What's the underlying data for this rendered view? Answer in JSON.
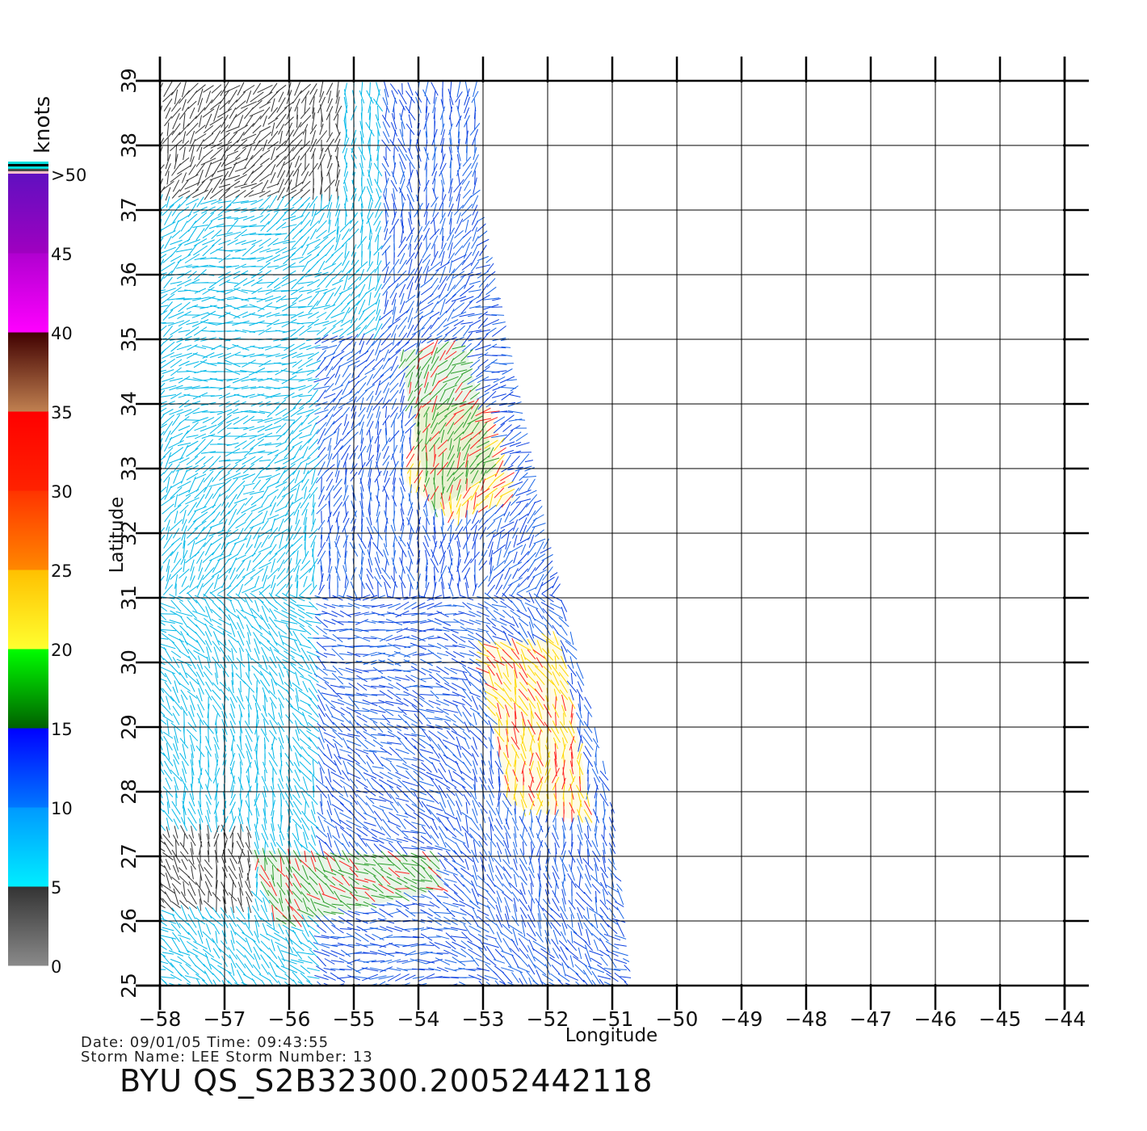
{
  "map": {
    "lon_ticks": [
      -58,
      -57,
      -56,
      -55,
      -54,
      -53,
      -52,
      -51,
      -50,
      -49,
      -48,
      -47,
      -46,
      -45,
      -44
    ],
    "lat_ticks": [
      25,
      26,
      27,
      28,
      29,
      30,
      31,
      32,
      33,
      34,
      35,
      36,
      37,
      38,
      39
    ],
    "lon_tick_labels": [
      "−58",
      "−57",
      "−56",
      "−55",
      "−54",
      "−53",
      "−52",
      "−51",
      "−50",
      "−49",
      "−48",
      "−47",
      "−46",
      "−45",
      "−44"
    ],
    "lat_tick_labels": [
      "25",
      "26",
      "27",
      "28",
      "29",
      "30",
      "31",
      "32",
      "33",
      "34",
      "35",
      "36",
      "37",
      "38",
      "39"
    ],
    "xlabel": "Longitude",
    "ylabel": "Latitude",
    "swath_polygon": [
      [
        -58,
        39
      ],
      [
        -53,
        39
      ],
      [
        -53,
        37
      ],
      [
        -52,
        32
      ],
      [
        -51,
        28
      ],
      [
        -50.7,
        25
      ],
      [
        -58,
        25
      ]
    ],
    "high_wind_zones": [
      {
        "color": "#ffd800",
        "points": [
          [
            -54,
            34
          ],
          [
            -52.9,
            34
          ],
          [
            -52.5,
            32.5
          ],
          [
            -53.5,
            32.2
          ],
          [
            -54.2,
            32.8
          ]
        ]
      },
      {
        "color": "#2ca02c",
        "points": [
          [
            -54.3,
            34.8
          ],
          [
            -53.3,
            35
          ],
          [
            -52.8,
            33
          ],
          [
            -53.8,
            32.3
          ]
        ]
      },
      {
        "color": "#ffd800",
        "points": [
          [
            -53.1,
            30.3
          ],
          [
            -51.8,
            30.4
          ],
          [
            -51.3,
            27.5
          ],
          [
            -52.6,
            27.8
          ]
        ]
      },
      {
        "color": "#2ca02c",
        "points": [
          [
            -56.6,
            27.1
          ],
          [
            -53.7,
            27
          ],
          [
            -53.6,
            26.5
          ],
          [
            -56.2,
            25.9
          ]
        ]
      }
    ]
  },
  "colorbar": {
    "unit_label": "knots",
    "tick_labels": [
      "0",
      "5",
      "10",
      "15",
      "20",
      "25",
      "30",
      "35",
      "40",
      "45",
      ">50"
    ],
    "segments": [
      {
        "from": 0,
        "to": 5,
        "colors": [
          "#8a8a8a",
          "#333333"
        ]
      },
      {
        "from": 5,
        "to": 10,
        "colors": [
          "#00eeff",
          "#0099ff"
        ]
      },
      {
        "from": 10,
        "to": 15,
        "colors": [
          "#0077ff",
          "#0000ff"
        ]
      },
      {
        "from": 15,
        "to": 20,
        "colors": [
          "#006000",
          "#00ff00"
        ]
      },
      {
        "from": 20,
        "to": 25,
        "colors": [
          "#ffff30",
          "#ffc000"
        ]
      },
      {
        "from": 25,
        "to": 30,
        "colors": [
          "#ff8800",
          "#ff3300"
        ]
      },
      {
        "from": 30,
        "to": 35,
        "colors": [
          "#ff2200",
          "#ff0000"
        ]
      },
      {
        "from": 35,
        "to": 40,
        "colors": [
          "#c08050",
          "#400000"
        ]
      },
      {
        "from": 40,
        "to": 45,
        "colors": [
          "#ff00ff",
          "#b000d0"
        ]
      },
      {
        "from": 45,
        "to": 50,
        "colors": [
          "#a000c0",
          "#6010c0"
        ]
      }
    ],
    "top_stripes": [
      "#ffc0cb",
      "#4a4a4a",
      "#00dddd",
      "#000000",
      "#00dddd"
    ]
  },
  "footer": {
    "date_time": "Date: 09/01/05  Time: 09:43:55",
    "storm": "Storm Name: LEE  Storm Number: 13",
    "title": "BYU QS_S2B32300.20052442118"
  }
}
